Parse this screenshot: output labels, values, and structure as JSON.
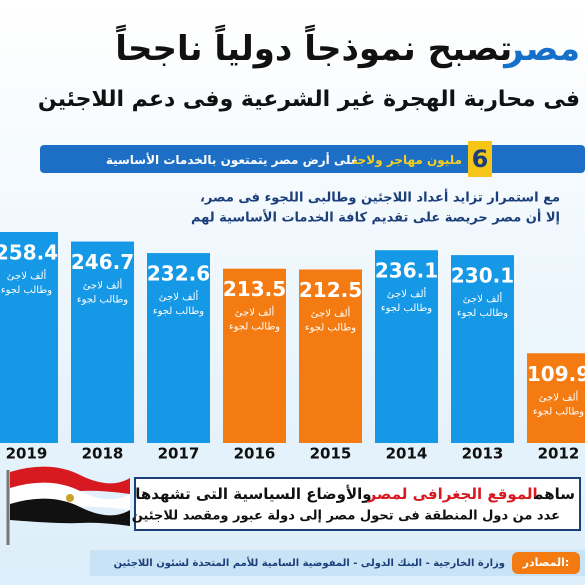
{
  "chart_data": {
    "type": "bar",
    "title_highlight": "مصر",
    "title": "تصبح نموذجاً دولياً ناجحاً",
    "subtitle": "فى محاربة الهجرة غير الشرعية وفى دعم اللاجئين",
    "banner_number": "6",
    "banner_highlight": "مليون مهاجر ولاجئ",
    "banner_text": "على أرض مصر يتمتعون بالخدمات الأساسية",
    "note": [
      "مع استمرار تزايد أعداد اللاجئين وطالبى اللجوء فى مصر،",
      "إلا أن مصر حريصة على تقديم كافة الخدمات الأساسية لهم"
    ],
    "unit_label": [
      "ألف لاجئ",
      "وطالب لجوء"
    ],
    "categories": [
      "2019",
      "2018",
      "2017",
      "2016",
      "2015",
      "2014",
      "2013",
      "2012"
    ],
    "values": [
      258.4,
      246.7,
      232.6,
      213.5,
      212.5,
      236.1,
      230.1,
      109.9
    ],
    "colors": [
      "#1598e6",
      "#1598e6",
      "#1598e6",
      "#f47a12",
      "#f47a12",
      "#1598e6",
      "#1598e6",
      "#f47a12"
    ],
    "footer_lines": {
      "start": "ساهم",
      "highlight": "الموقع الجغرافى لمصر",
      "end": "والأوضاع السياسية التى تشهدها",
      "second": "عدد من دول المنطقة فى تحول مصر إلى دولة عبور ومقصد للاجئين"
    },
    "sources_label": "المصادر:",
    "sources": "وزارة الخارجية - البنك الدولى - المفوضية السامية للأمم المتحدة لشئون اللاجئين"
  }
}
